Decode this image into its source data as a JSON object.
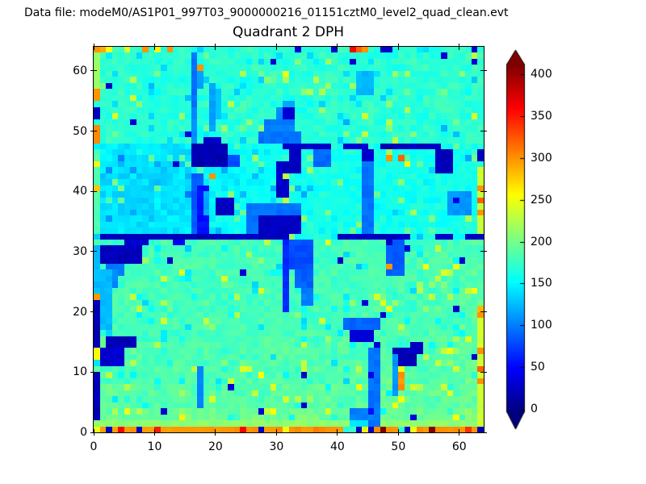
{
  "colors": {
    "background": "#ffffff",
    "spine": "#000000",
    "text": "#000000"
  },
  "header": {
    "data_file_label": "Data file: modeM0/AS1P01_997T03_9000000216_01151cztM0_level2_quad_clean.evt"
  },
  "chart_data": {
    "type": "heatmap",
    "title": "Quadrant 2 DPH",
    "xlabel": "",
    "ylabel": "",
    "x_range": [
      0,
      64
    ],
    "y_range": [
      0,
      64
    ],
    "x_ticks": [
      0,
      10,
      20,
      30,
      40,
      50,
      60
    ],
    "y_ticks": [
      0,
      10,
      20,
      30,
      40,
      50,
      60
    ],
    "grid": "off",
    "colormap": "jet",
    "colorbar": {
      "position": "right",
      "ticks": [
        0,
        50,
        100,
        150,
        200,
        250,
        300,
        350,
        400
      ],
      "value_range": [
        -3,
        412
      ],
      "extend": "both"
    },
    "grid_size": 64,
    "base_grid_16_top_to_bottom": [
      [
        175,
        172,
        168,
        170,
        166,
        170,
        172,
        168,
        170,
        168,
        172,
        170,
        168,
        172,
        170,
        175
      ],
      [
        172,
        170,
        165,
        168,
        170,
        168,
        165,
        170,
        168,
        172,
        170,
        168,
        172,
        168,
        170,
        172
      ],
      [
        170,
        172,
        168,
        165,
        168,
        170,
        172,
        168,
        165,
        170,
        168,
        172,
        170,
        168,
        172,
        170
      ],
      [
        170,
        168,
        170,
        172,
        165,
        168,
        170,
        172,
        170,
        168,
        165,
        170,
        172,
        170,
        168,
        172
      ],
      [
        145,
        142,
        145,
        140,
        150,
        152,
        158,
        160,
        162,
        158,
        160,
        162,
        158,
        160,
        162,
        165
      ],
      [
        140,
        140,
        138,
        142,
        148,
        150,
        155,
        158,
        160,
        162,
        158,
        160,
        162,
        158,
        160,
        162
      ],
      [
        138,
        138,
        142,
        140,
        145,
        150,
        158,
        160,
        158,
        162,
        160,
        158,
        162,
        160,
        158,
        162
      ],
      [
        142,
        140,
        142,
        145,
        150,
        155,
        158,
        160,
        162,
        158,
        160,
        162,
        158,
        162,
        160,
        162
      ],
      [
        178,
        178,
        180,
        178,
        182,
        180,
        178,
        182,
        180,
        178,
        182,
        180,
        178,
        180,
        182,
        185
      ],
      [
        180,
        180,
        182,
        180,
        178,
        182,
        180,
        178,
        182,
        180,
        178,
        182,
        180,
        182,
        178,
        185
      ],
      [
        182,
        182,
        178,
        182,
        180,
        178,
        182,
        180,
        178,
        182,
        180,
        182,
        178,
        180,
        185,
        188
      ],
      [
        180,
        180,
        182,
        180,
        182,
        185,
        180,
        182,
        180,
        178,
        182,
        180,
        185,
        182,
        180,
        188
      ],
      [
        185,
        185,
        180,
        182,
        185,
        180,
        182,
        185,
        182,
        180,
        185,
        182,
        180,
        185,
        188,
        190
      ],
      [
        182,
        182,
        185,
        188,
        182,
        185,
        188,
        185,
        182,
        185,
        188,
        185,
        190,
        188,
        185,
        192
      ],
      [
        190,
        190,
        185,
        188,
        190,
        188,
        185,
        190,
        188,
        192,
        188,
        190,
        192,
        188,
        190,
        195
      ],
      [
        195,
        192,
        195,
        198,
        195,
        192,
        198,
        195,
        198,
        195,
        192,
        198,
        195,
        198,
        200,
        205
      ]
    ],
    "features": [
      {
        "x": 0,
        "y": 0,
        "w": 64,
        "h": 1,
        "v": 300
      },
      {
        "x": 0,
        "y": 1,
        "w": 64,
        "h": 1,
        "v": 210
      },
      {
        "x": 42,
        "y": 1,
        "w": 5,
        "h": 1,
        "v": 140
      },
      {
        "x": 0,
        "y": 57,
        "w": 1,
        "h": 6,
        "v": 215
      },
      {
        "x": 0,
        "y": 55,
        "w": 1,
        "h": 2,
        "v": 300
      },
      {
        "x": 0,
        "y": 52,
        "w": 1,
        "h": 2,
        "v": 25
      },
      {
        "x": 0,
        "y": 48,
        "w": 1,
        "h": 3,
        "v": 300
      },
      {
        "x": 0,
        "y": 33,
        "w": 1,
        "h": 14,
        "v": 185
      },
      {
        "x": 0,
        "y": 23,
        "w": 1,
        "h": 8,
        "v": 125
      },
      {
        "x": 0,
        "y": 22,
        "w": 1,
        "h": 1,
        "v": 300
      },
      {
        "x": 0,
        "y": 14,
        "w": 1,
        "h": 8,
        "v": 18
      },
      {
        "x": 0,
        "y": 12,
        "w": 1,
        "h": 2,
        "v": 250
      },
      {
        "x": 0,
        "y": 2,
        "w": 1,
        "h": 8,
        "v": 18
      },
      {
        "x": 1,
        "y": 32,
        "w": 31,
        "h": 1,
        "v": 22
      },
      {
        "x": 5,
        "y": 31,
        "w": 4,
        "h": 1,
        "v": 30
      },
      {
        "x": 13,
        "y": 31,
        "w": 2,
        "h": 1,
        "v": 45
      },
      {
        "x": 40,
        "y": 32,
        "w": 12,
        "h": 1,
        "v": 24
      },
      {
        "x": 56,
        "y": 32,
        "w": 3,
        "h": 1,
        "v": 25
      },
      {
        "x": 61,
        "y": 32,
        "w": 3,
        "h": 1,
        "v": 25
      },
      {
        "x": 31,
        "y": 47,
        "w": 8,
        "h": 1,
        "v": 25
      },
      {
        "x": 41,
        "y": 47,
        "w": 4,
        "h": 1,
        "v": 30
      },
      {
        "x": 47,
        "y": 47,
        "w": 10,
        "h": 1,
        "v": 22
      },
      {
        "x": 16,
        "y": 54,
        "w": 1,
        "h": 9,
        "v": 95
      },
      {
        "x": 17,
        "y": 57,
        "w": 1,
        "h": 4,
        "v": 115
      },
      {
        "x": 19,
        "y": 50,
        "w": 1,
        "h": 8,
        "v": 115
      },
      {
        "x": 20,
        "y": 52,
        "w": 1,
        "h": 5,
        "v": 130
      },
      {
        "x": 16,
        "y": 44,
        "w": 1,
        "h": 10,
        "v": 105
      },
      {
        "x": 16,
        "y": 33,
        "w": 2,
        "h": 10,
        "v": 85
      },
      {
        "x": 17,
        "y": 33,
        "w": 2,
        "h": 8,
        "v": 55
      },
      {
        "x": 18,
        "y": 36,
        "w": 1,
        "h": 4,
        "v": 115
      },
      {
        "x": 22,
        "y": 44,
        "w": 2,
        "h": 2,
        "v": 80
      },
      {
        "x": 16,
        "y": 44,
        "w": 6,
        "h": 4,
        "v": 18
      },
      {
        "x": 18,
        "y": 48,
        "w": 3,
        "h": 1,
        "v": 28
      },
      {
        "x": 20,
        "y": 36,
        "w": 3,
        "h": 3,
        "v": 25
      },
      {
        "x": 25,
        "y": 33,
        "w": 9,
        "h": 5,
        "v": 95
      },
      {
        "x": 27,
        "y": 33,
        "w": 7,
        "h": 3,
        "v": 25
      },
      {
        "x": 27,
        "y": 48,
        "w": 7,
        "h": 2,
        "v": 95
      },
      {
        "x": 28,
        "y": 50,
        "w": 5,
        "h": 2,
        "v": 100
      },
      {
        "x": 30,
        "y": 52,
        "w": 3,
        "h": 2,
        "v": 105
      },
      {
        "x": 31,
        "y": 54,
        "w": 2,
        "h": 1,
        "v": 120
      },
      {
        "x": 31,
        "y": 52,
        "w": 2,
        "h": 2,
        "v": 30
      },
      {
        "x": 30,
        "y": 39,
        "w": 2,
        "h": 6,
        "v": 28
      },
      {
        "x": 32,
        "y": 43,
        "w": 2,
        "h": 4,
        "v": 22
      },
      {
        "x": 44,
        "y": 33,
        "w": 2,
        "h": 14,
        "v": 95
      },
      {
        "x": 44,
        "y": 45,
        "w": 2,
        "h": 2,
        "v": 30
      },
      {
        "x": 36,
        "y": 44,
        "w": 3,
        "h": 3,
        "v": 90
      },
      {
        "x": 56,
        "y": 43,
        "w": 3,
        "h": 4,
        "v": 22
      },
      {
        "x": 43,
        "y": 56,
        "w": 3,
        "h": 4,
        "v": 125
      },
      {
        "x": 58,
        "y": 36,
        "w": 4,
        "h": 4,
        "v": 110
      },
      {
        "x": 63,
        "y": 33,
        "w": 1,
        "h": 11,
        "v": 235
      },
      {
        "x": 1,
        "y": 28,
        "w": 7,
        "h": 3,
        "v": 22
      },
      {
        "x": 2,
        "y": 26,
        "w": 3,
        "h": 2,
        "v": 95
      },
      {
        "x": 1,
        "y": 24,
        "w": 3,
        "h": 3,
        "v": 105
      },
      {
        "x": 1,
        "y": 17,
        "w": 2,
        "h": 10,
        "v": 125
      },
      {
        "x": 2,
        "y": 14,
        "w": 5,
        "h": 2,
        "v": 18
      },
      {
        "x": 1,
        "y": 11,
        "w": 4,
        "h": 3,
        "v": 30
      },
      {
        "x": 17,
        "y": 4,
        "w": 1,
        "h": 7,
        "v": 100
      },
      {
        "x": 31,
        "y": 20,
        "w": 1,
        "h": 12,
        "v": 65
      },
      {
        "x": 32,
        "y": 27,
        "w": 4,
        "h": 5,
        "v": 80
      },
      {
        "x": 33,
        "y": 24,
        "w": 3,
        "h": 3,
        "v": 88
      },
      {
        "x": 34,
        "y": 21,
        "w": 2,
        "h": 3,
        "v": 100
      },
      {
        "x": 48,
        "y": 26,
        "w": 3,
        "h": 6,
        "v": 85
      },
      {
        "x": 49,
        "y": 11,
        "w": 4,
        "h": 3,
        "v": 18
      },
      {
        "x": 52,
        "y": 13,
        "w": 2,
        "h": 2,
        "v": 25
      },
      {
        "x": 49,
        "y": 6,
        "w": 1,
        "h": 7,
        "v": 110
      },
      {
        "x": 50,
        "y": 7,
        "w": 1,
        "h": 3,
        "v": 300
      },
      {
        "x": 45,
        "y": 1,
        "w": 2,
        "h": 13,
        "v": 95
      },
      {
        "x": 44,
        "y": 15,
        "w": 2,
        "h": 2,
        "v": 30
      },
      {
        "x": 41,
        "y": 17,
        "w": 6,
        "h": 2,
        "v": 90
      },
      {
        "x": 42,
        "y": 15,
        "w": 2,
        "h": 2,
        "v": 35
      },
      {
        "x": 42,
        "y": 2,
        "w": 4,
        "h": 2,
        "v": 100
      },
      {
        "x": 63,
        "y": 1,
        "w": 1,
        "h": 20,
        "v": 235
      }
    ],
    "speckles": [
      [
        0,
        63,
        300
      ],
      [
        1,
        63,
        290
      ],
      [
        2,
        63,
        250
      ],
      [
        5,
        63,
        240
      ],
      [
        8,
        63,
        300
      ],
      [
        10,
        63,
        260
      ],
      [
        12,
        63,
        300
      ],
      [
        33,
        63,
        35
      ],
      [
        39,
        63,
        30
      ],
      [
        42,
        63,
        360
      ],
      [
        43,
        63,
        320
      ],
      [
        44,
        63,
        300
      ],
      [
        47,
        63,
        28
      ],
      [
        48,
        63,
        28
      ],
      [
        62,
        63,
        30
      ],
      [
        29,
        61,
        28
      ],
      [
        31,
        59,
        250
      ],
      [
        17,
        60,
        300
      ],
      [
        6,
        51,
        30
      ],
      [
        42,
        61,
        30
      ],
      [
        57,
        62,
        30
      ],
      [
        62,
        61,
        30
      ],
      [
        2,
        57,
        25
      ],
      [
        15,
        49,
        40
      ],
      [
        19,
        42,
        300
      ],
      [
        13,
        44,
        28
      ],
      [
        31,
        42,
        230
      ],
      [
        31,
        38,
        230
      ],
      [
        48,
        45,
        300
      ],
      [
        50,
        45,
        320
      ],
      [
        51,
        44,
        260
      ],
      [
        63,
        45,
        25
      ],
      [
        63,
        46,
        25
      ],
      [
        63,
        36,
        300
      ],
      [
        63,
        38,
        320
      ],
      [
        63,
        40,
        300
      ],
      [
        59,
        38,
        45
      ],
      [
        0,
        44,
        250
      ],
      [
        0,
        40,
        280
      ],
      [
        12,
        28,
        28
      ],
      [
        24,
        26,
        30
      ],
      [
        11,
        3,
        28
      ],
      [
        27,
        3,
        30
      ],
      [
        22,
        7,
        30
      ],
      [
        34,
        4,
        28
      ],
      [
        40,
        28,
        28
      ],
      [
        60,
        28,
        30
      ],
      [
        62,
        12,
        28
      ],
      [
        59,
        20,
        28
      ],
      [
        44,
        21,
        30
      ],
      [
        45,
        9,
        40
      ],
      [
        45,
        3,
        55
      ],
      [
        46,
        14,
        30
      ],
      [
        34,
        9,
        28
      ],
      [
        50,
        5,
        250
      ],
      [
        50,
        10,
        250
      ],
      [
        63,
        8,
        300
      ],
      [
        63,
        10,
        320
      ],
      [
        63,
        13,
        300
      ],
      [
        63,
        19,
        300
      ],
      [
        63,
        20,
        285
      ],
      [
        48,
        27,
        300
      ],
      [
        48,
        31,
        25
      ],
      [
        51,
        30,
        30
      ],
      [
        52,
        2,
        35
      ],
      [
        47,
        19,
        28
      ],
      [
        48,
        20,
        240
      ],
      [
        0,
        0,
        250
      ],
      [
        2,
        0,
        25
      ],
      [
        4,
        0,
        360
      ],
      [
        7,
        0,
        25
      ],
      [
        10,
        0,
        350
      ],
      [
        24,
        0,
        360
      ],
      [
        27,
        0,
        25
      ],
      [
        31,
        0,
        250
      ],
      [
        36,
        0,
        310
      ],
      [
        41,
        0,
        165
      ],
      [
        42,
        0,
        175
      ],
      [
        43,
        0,
        25
      ],
      [
        44,
        0,
        250
      ],
      [
        45,
        0,
        25
      ],
      [
        47,
        0,
        425
      ],
      [
        50,
        0,
        170
      ],
      [
        51,
        0,
        25
      ],
      [
        52,
        0,
        250
      ],
      [
        55,
        0,
        430
      ],
      [
        58,
        0,
        300
      ],
      [
        61,
        0,
        340
      ],
      [
        62,
        0,
        300
      ],
      [
        63,
        0,
        20
      ]
    ],
    "noise": {
      "seed": 20,
      "amp": 14,
      "fleck_up_prob": 0.05,
      "fleck_down_prob": 0.1
    }
  }
}
